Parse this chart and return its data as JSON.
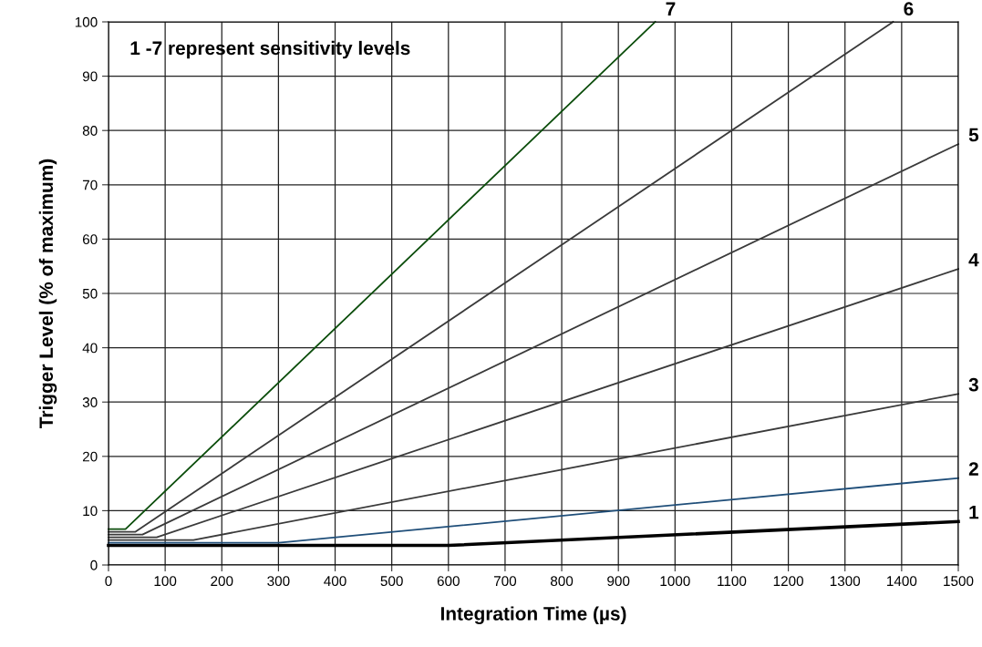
{
  "chart_data": {
    "type": "line",
    "xlabel": "Integration Time (µs)",
    "ylabel": "Trigger Level (% of maximum)",
    "annotations": [
      "1 -7 represent sensitivity levels"
    ],
    "xlim": [
      0,
      1500
    ],
    "xticks": [
      0,
      100,
      200,
      300,
      400,
      500,
      600,
      700,
      800,
      900,
      1000,
      1100,
      1200,
      1300,
      1400,
      1500
    ],
    "ylim": [
      0,
      100
    ],
    "yticks": [
      0,
      10,
      20,
      30,
      40,
      50,
      60,
      70,
      80,
      90,
      100
    ],
    "grid": true,
    "legend": false,
    "marker": "none",
    "line_style": "solid",
    "series": [
      {
        "name": "1",
        "color": "#000000",
        "x": [
          0,
          600,
          1500
        ],
        "values": [
          3.6,
          3.6,
          8
        ]
      },
      {
        "name": "2",
        "color": "#1f4e79",
        "x": [
          0,
          300,
          1500
        ],
        "values": [
          4.1,
          4.1,
          16
        ]
      },
      {
        "name": "3",
        "color": "#3a3a3a",
        "x": [
          0,
          150,
          1500
        ],
        "values": [
          4.6,
          4.6,
          31.5
        ]
      },
      {
        "name": "4",
        "color": "#3a3a3a",
        "x": [
          0,
          85,
          1500
        ],
        "values": [
          5.1,
          5.1,
          54.5
        ]
      },
      {
        "name": "5",
        "color": "#3a3a3a",
        "x": [
          0,
          60,
          1500
        ],
        "values": [
          5.6,
          5.6,
          77.5
        ]
      },
      {
        "name": "6",
        "color": "#3a3a3a",
        "x": [
          0,
          47,
          1385
        ],
        "values": [
          6.1,
          6.1,
          100
        ]
      },
      {
        "name": "7",
        "color": "#0b4d0b",
        "x": [
          0,
          30,
          965
        ],
        "values": [
          6.6,
          6.6,
          100
        ]
      }
    ]
  }
}
